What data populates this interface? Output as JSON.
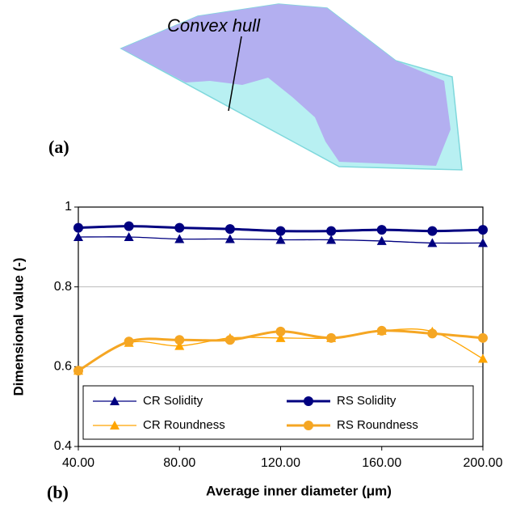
{
  "panel_a": {
    "label": "(a)",
    "annotation": "Convex hull"
  },
  "chart_data": {
    "type": "line",
    "panel_label": "(b)",
    "x_label": "Average inner diameter (μm)",
    "y_label": "Dimensional value (-)",
    "x": [
      40,
      60,
      80,
      100,
      120,
      140,
      160,
      180,
      200
    ],
    "xlim": [
      40,
      200
    ],
    "xticks": [
      {
        "value": 40,
        "label": "40.00"
      },
      {
        "value": 80,
        "label": "80.00"
      },
      {
        "value": 120,
        "label": "120.00"
      },
      {
        "value": 160,
        "label": "160.00"
      },
      {
        "value": 200,
        "label": "200.00"
      }
    ],
    "ylim": [
      0.4,
      1
    ],
    "yticks": [
      0.4,
      0.6,
      0.8,
      1
    ],
    "grid": true,
    "smooth": true,
    "legend": "bottom",
    "series": [
      {
        "name": "CR Solidity",
        "color": "#000080",
        "marker": "triangle",
        "line_width": 1.3,
        "values": [
          0.925,
          0.925,
          0.92,
          0.92,
          0.918,
          0.918,
          0.915,
          0.91,
          0.91
        ]
      },
      {
        "name": "RS Solidity",
        "color": "#000080",
        "marker": "circle",
        "line_width": 3,
        "values": [
          0.948,
          0.952,
          0.948,
          0.945,
          0.94,
          0.94,
          0.943,
          0.94,
          0.943
        ]
      },
      {
        "name": "CR Roundness",
        "color": "#ffa500",
        "marker": "triangle",
        "line_width": 1.3,
        "values": [
          0.59,
          0.66,
          0.652,
          0.672,
          0.672,
          0.672,
          0.69,
          0.688,
          0.62
        ]
      },
      {
        "name": "RS Roundness",
        "color": "#f5a623",
        "marker": "circle",
        "line_width": 3,
        "values": [
          0.59,
          0.663,
          0.667,
          0.667,
          0.688,
          0.672,
          0.69,
          0.683,
          0.672
        ]
      }
    ]
  }
}
